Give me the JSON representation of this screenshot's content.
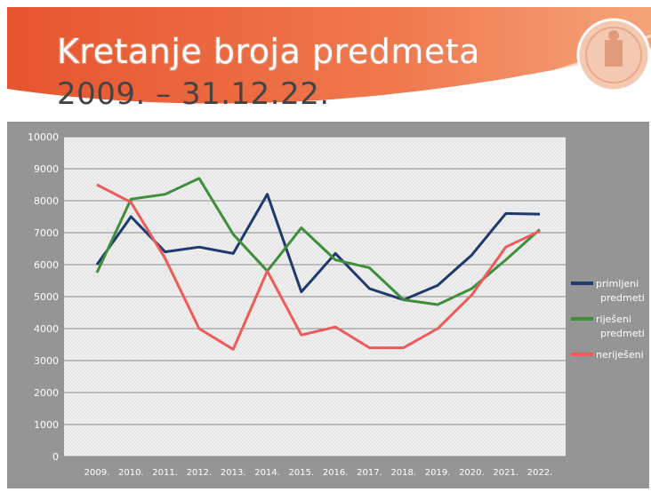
{
  "slide": {
    "title_line1": "Kretanje broja predmeta",
    "title_line2": "2009. – 31.12.22."
  },
  "colors": {
    "header_orange": "#e8603c",
    "panel_gray": "#959595",
    "plot_bg": "#efefef"
  },
  "chart_data": {
    "type": "line",
    "title": "",
    "xlabel": "",
    "ylabel": "",
    "ylim": [
      0,
      10000
    ],
    "y_ticks": [
      "0",
      "1000",
      "2000",
      "3000",
      "4000",
      "5000",
      "6000",
      "7000",
      "8000",
      "9000",
      "10000"
    ],
    "categories": [
      "2009.",
      "2010.",
      "2011.",
      "2012.",
      "2013.",
      "2014.",
      "2015.",
      "2016.",
      "2017.",
      "2018.",
      "2019.",
      "2020.",
      "2021.",
      "2022."
    ],
    "grid": true,
    "legend_position": "right",
    "series": [
      {
        "name": "primljeni predmeti",
        "color": "#1f3a6e",
        "values": [
          6000,
          7500,
          6400,
          6550,
          6350,
          8200,
          5150,
          6350,
          5250,
          4900,
          5350,
          6300,
          7600,
          7580
        ]
      },
      {
        "name": "riješeni predmeti",
        "color": "#3f8f3a",
        "values": [
          5750,
          8050,
          8200,
          8700,
          6950,
          5800,
          7150,
          6150,
          5900,
          4900,
          4750,
          5250,
          6150,
          7100
        ]
      },
      {
        "name": "neriješeni",
        "color": "#ee5b5b",
        "values": [
          8500,
          7950,
          6200,
          4000,
          3350,
          5800,
          3800,
          4050,
          3400,
          3400,
          4000,
          5050,
          6550,
          7050
        ]
      }
    ],
    "legend_labels": [
      {
        "series": 0,
        "lines": [
          "primljeni",
          "predmeti"
        ]
      },
      {
        "series": 1,
        "lines": [
          "riješeni",
          "predmeti"
        ]
      },
      {
        "series": 2,
        "lines": [
          "neriješeni"
        ]
      }
    ]
  }
}
